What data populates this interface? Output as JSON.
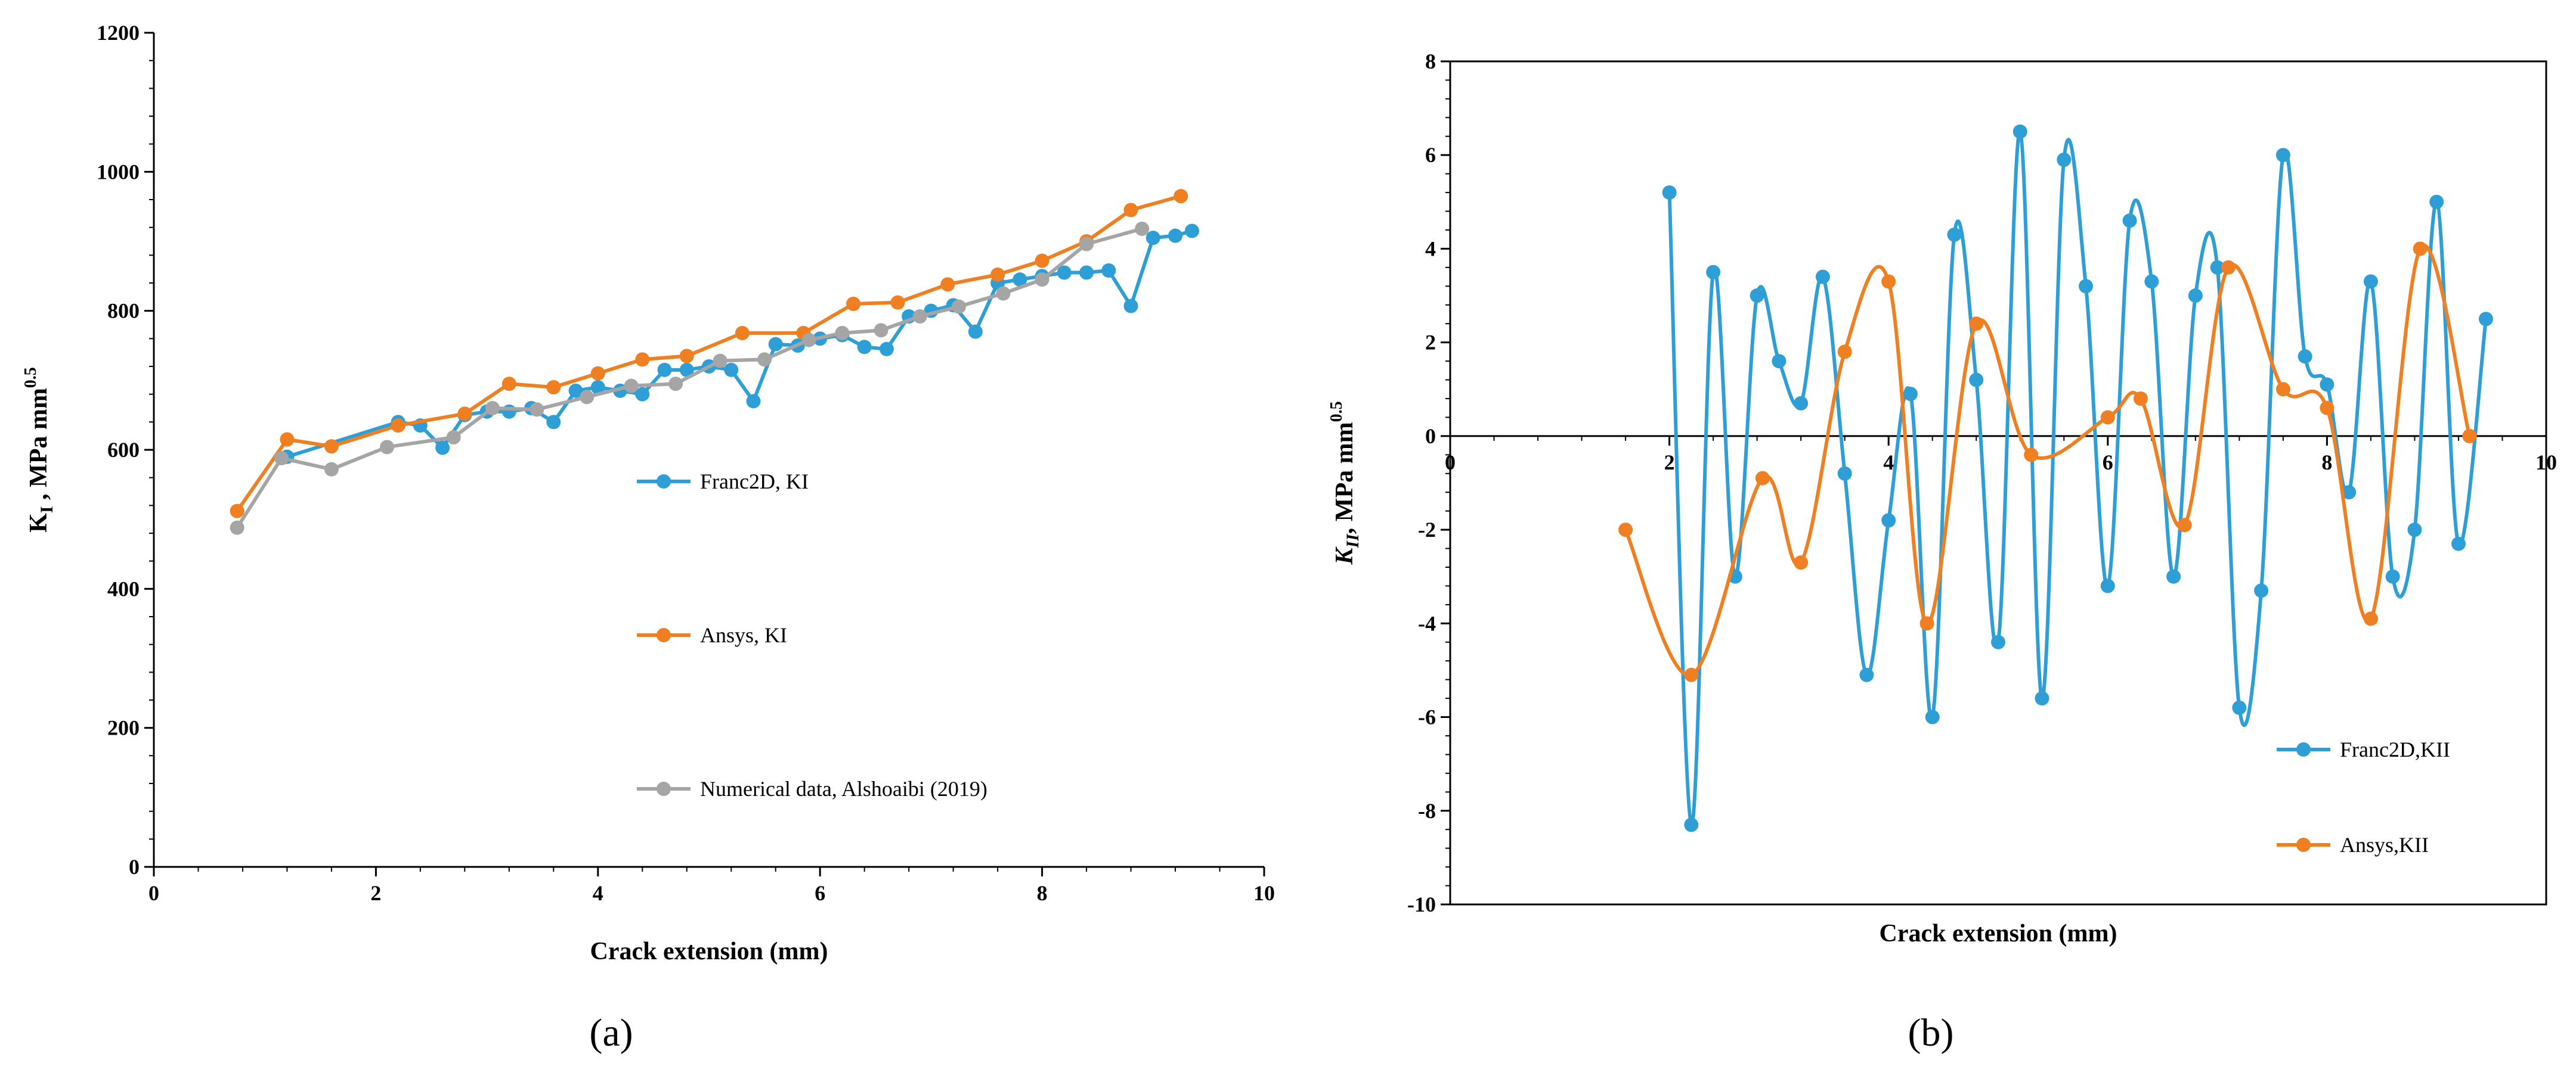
{
  "chart_data": [
    {
      "type": "line",
      "panel_label": "(a)",
      "xlabel": "Crack extension (mm)",
      "ylabel_main": "K",
      "ylabel_sub": "I",
      "ylabel_rest": " , MPa mm",
      "ylabel_sup": "0.5",
      "xlim": [
        0,
        10
      ],
      "ylim": [
        0,
        1200
      ],
      "xticks": [
        "0",
        "2",
        "4",
        "6",
        "8",
        "10"
      ],
      "yticks": [
        "0",
        "200",
        "400",
        "600",
        "800",
        "1000",
        "1200"
      ],
      "grid": false,
      "legend_position": "center-right",
      "series": [
        {
          "name": "Franc2D, KI",
          "color": "#2e9fd6",
          "smooth": false,
          "x": [
            1.2,
            2.2,
            2.4,
            2.6,
            2.8,
            3.0,
            3.2,
            3.4,
            3.6,
            3.8,
            4.0,
            4.2,
            4.4,
            4.6,
            4.8,
            5.0,
            5.2,
            5.4,
            5.6,
            5.8,
            6.0,
            6.2,
            6.4,
            6.6,
            6.8,
            7.0,
            7.2,
            7.4,
            7.6,
            7.8,
            8.0,
            8.2,
            8.4,
            8.6,
            8.8,
            9.0,
            9.2,
            9.35
          ],
          "y": [
            590,
            640,
            635,
            603,
            650,
            655,
            655,
            660,
            640,
            685,
            690,
            685,
            680,
            715,
            715,
            720,
            715,
            670,
            752,
            750,
            760,
            765,
            748,
            745,
            792,
            800,
            808,
            770,
            840,
            845,
            850,
            855,
            855,
            858,
            807,
            905,
            908,
            915
          ]
        },
        {
          "name": "Ansys, KI",
          "color": "#f07f22",
          "smooth": false,
          "x": [
            0.75,
            1.2,
            1.6,
            2.2,
            2.8,
            3.2,
            3.6,
            4.0,
            4.4,
            4.8,
            5.3,
            5.85,
            6.3,
            6.7,
            7.15,
            7.6,
            8.0,
            8.4,
            8.8,
            9.25
          ],
          "y": [
            512,
            615,
            605,
            635,
            652,
            695,
            690,
            710,
            730,
            735,
            768,
            768,
            810,
            812,
            838,
            852,
            872,
            900,
            945,
            965
          ]
        },
        {
          "name": "Numerical data, Alshoaibi (2019)",
          "color": "#a5a5a5",
          "smooth": false,
          "x": [
            0.75,
            1.15,
            1.6,
            2.1,
            2.7,
            3.05,
            3.45,
            3.9,
            4.3,
            4.7,
            5.1,
            5.5,
            5.9,
            6.2,
            6.55,
            6.9,
            7.25,
            7.65,
            8.0,
            8.4,
            8.9
          ],
          "y": [
            488,
            588,
            572,
            604,
            618,
            660,
            658,
            676,
            692,
            695,
            728,
            730,
            758,
            768,
            772,
            792,
            806,
            825,
            845,
            896,
            918
          ]
        }
      ]
    },
    {
      "type": "line",
      "panel_label": "(b)",
      "xlabel": "Crack extension (mm)",
      "ylabel_main": "K",
      "ylabel_sub": "II",
      "ylabel_rest": ", MPa mm",
      "ylabel_sup": "0.5",
      "xlim": [
        0,
        10
      ],
      "ylim": [
        -10,
        8
      ],
      "xticks": [
        "0",
        "2",
        "4",
        "6",
        "8",
        "10"
      ],
      "yticks": [
        "-10",
        "-8",
        "-6",
        "-4",
        "-2",
        "0",
        "2",
        "4",
        "6",
        "8"
      ],
      "grid": false,
      "legend_position": "bottom-right",
      "series": [
        {
          "name": "Franc2D,KII",
          "color": "#2e9fd6",
          "smooth": true,
          "x": [
            2.0,
            2.2,
            2.4,
            2.6,
            2.8,
            3.0,
            3.2,
            3.4,
            3.6,
            3.8,
            4.0,
            4.2,
            4.4,
            4.6,
            4.8,
            5.0,
            5.2,
            5.4,
            5.6,
            5.8,
            6.0,
            6.2,
            6.4,
            6.6,
            6.8,
            7.0,
            7.2,
            7.4,
            7.6,
            7.8,
            8.0,
            8.2,
            8.4,
            8.6,
            8.8,
            9.0,
            9.2,
            9.45
          ],
          "y": [
            5.2,
            -8.3,
            3.5,
            -3.0,
            3.0,
            1.6,
            0.7,
            3.4,
            -0.8,
            -5.1,
            -1.8,
            0.9,
            -6.0,
            4.3,
            1.2,
            -4.4,
            6.5,
            -5.6,
            5.9,
            3.2,
            -3.2,
            4.6,
            3.3,
            -3.0,
            3.0,
            3.6,
            -5.8,
            -3.3,
            6.0,
            1.7,
            1.1,
            -1.2,
            3.3,
            -3.0,
            -2.0,
            5.0,
            -2.3,
            2.5
          ]
        },
        {
          "name": "Ansys,KII",
          "color": "#f07f22",
          "smooth": true,
          "x": [
            1.6,
            2.2,
            2.85,
            3.2,
            3.6,
            4.0,
            4.35,
            4.8,
            5.3,
            6.0,
            6.3,
            6.7,
            7.1,
            7.6,
            8.0,
            8.4,
            8.85,
            9.3
          ],
          "y": [
            -2.0,
            -5.1,
            -0.9,
            -2.7,
            1.8,
            3.3,
            -4.0,
            2.4,
            -0.4,
            0.4,
            0.8,
            -1.9,
            3.6,
            1.0,
            0.6,
            -3.9,
            4.0,
            0.0
          ]
        }
      ]
    }
  ]
}
